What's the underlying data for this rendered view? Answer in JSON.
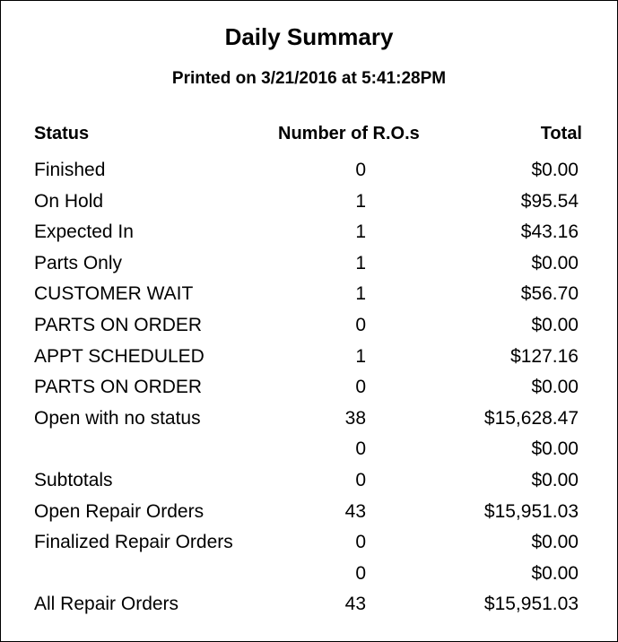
{
  "title": "Daily Summary",
  "subtitle": "Printed on 3/21/2016 at  5:41:28PM",
  "columns": {
    "status": "Status",
    "count": "Number of R.O.s",
    "total": "Total"
  },
  "rows": [
    {
      "status": "Finished",
      "count": "0",
      "total": "$0.00"
    },
    {
      "status": "On Hold",
      "count": "1",
      "total": "$95.54"
    },
    {
      "status": "Expected In",
      "count": "1",
      "total": "$43.16"
    },
    {
      "status": "Parts Only",
      "count": "1",
      "total": "$0.00"
    },
    {
      "status": "CUSTOMER WAIT",
      "count": "1",
      "total": "$56.70"
    },
    {
      "status": "PARTS ON ORDER",
      "count": "0",
      "total": "$0.00"
    },
    {
      "status": "APPT SCHEDULED",
      "count": "1",
      "total": "$127.16"
    },
    {
      "status": "PARTS ON ORDER",
      "count": "0",
      "total": "$0.00"
    },
    {
      "status": "Open with no status",
      "count": "38",
      "total": "$15,628.47"
    },
    {
      "status": "",
      "count": "0",
      "total": "$0.00"
    },
    {
      "status": "Subtotals",
      "count": "0",
      "total": "$0.00"
    },
    {
      "status": "Open Repair Orders",
      "count": "43",
      "total": "$15,951.03"
    },
    {
      "status": "Finalized Repair Orders",
      "count": "0",
      "total": "$0.00"
    },
    {
      "status": "",
      "count": "0",
      "total": "$0.00"
    },
    {
      "status": "All Repair Orders",
      "count": "43",
      "total": "$15,951.03"
    }
  ]
}
